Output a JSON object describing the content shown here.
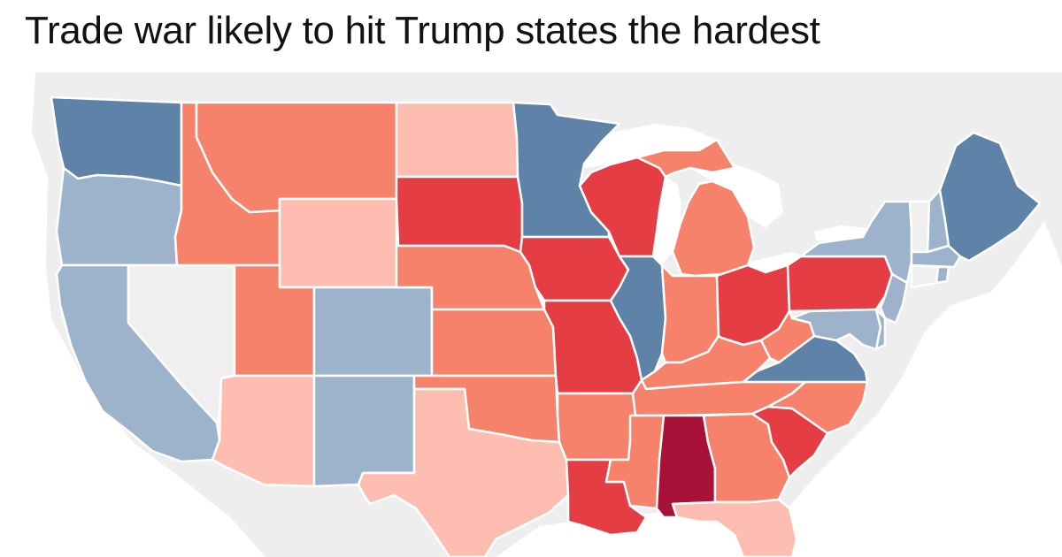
{
  "title": "Trade war likely to hit Trump states the hardest",
  "colors": {
    "background_land": "#eeeeee",
    "water": "#ffffff",
    "blue_dark": "#5e82a8",
    "blue_light": "#9cb3cb",
    "neutral": "#efefef",
    "red_light": "#fdbdb0",
    "red_medium": "#f6826b",
    "red_strong": "#e43e44",
    "red_darkest": "#a81238"
  },
  "states": [
    {
      "id": "WA",
      "name": "Washington",
      "category": "blue_dark"
    },
    {
      "id": "OR",
      "name": "Oregon",
      "category": "blue_light"
    },
    {
      "id": "CA",
      "name": "California",
      "category": "blue_light"
    },
    {
      "id": "NV",
      "name": "Nevada",
      "category": "neutral"
    },
    {
      "id": "ID",
      "name": "Idaho",
      "category": "red_medium"
    },
    {
      "id": "MT",
      "name": "Montana",
      "category": "red_medium"
    },
    {
      "id": "WY",
      "name": "Wyoming",
      "category": "red_light"
    },
    {
      "id": "UT",
      "name": "Utah",
      "category": "red_medium"
    },
    {
      "id": "CO",
      "name": "Colorado",
      "category": "blue_light"
    },
    {
      "id": "AZ",
      "name": "Arizona",
      "category": "red_light"
    },
    {
      "id": "NM",
      "name": "New Mexico",
      "category": "blue_light"
    },
    {
      "id": "ND",
      "name": "North Dakota",
      "category": "red_light"
    },
    {
      "id": "SD",
      "name": "South Dakota",
      "category": "red_strong"
    },
    {
      "id": "NE",
      "name": "Nebraska",
      "category": "red_medium"
    },
    {
      "id": "KS",
      "name": "Kansas",
      "category": "red_medium"
    },
    {
      "id": "OK",
      "name": "Oklahoma",
      "category": "red_medium"
    },
    {
      "id": "TX",
      "name": "Texas",
      "category": "red_light"
    },
    {
      "id": "MN",
      "name": "Minnesota",
      "category": "blue_dark"
    },
    {
      "id": "IA",
      "name": "Iowa",
      "category": "red_strong"
    },
    {
      "id": "MO",
      "name": "Missouri",
      "category": "red_strong"
    },
    {
      "id": "AR",
      "name": "Arkansas",
      "category": "red_medium"
    },
    {
      "id": "LA",
      "name": "Louisiana",
      "category": "red_strong"
    },
    {
      "id": "WI",
      "name": "Wisconsin",
      "category": "red_strong"
    },
    {
      "id": "IL",
      "name": "Illinois",
      "category": "blue_dark"
    },
    {
      "id": "MI",
      "name": "Michigan",
      "category": "red_medium"
    },
    {
      "id": "IN",
      "name": "Indiana",
      "category": "red_medium"
    },
    {
      "id": "OH",
      "name": "Ohio",
      "category": "red_strong"
    },
    {
      "id": "KY",
      "name": "Kentucky",
      "category": "red_medium"
    },
    {
      "id": "TN",
      "name": "Tennessee",
      "category": "red_medium"
    },
    {
      "id": "MS",
      "name": "Mississippi",
      "category": "red_medium"
    },
    {
      "id": "AL",
      "name": "Alabama",
      "category": "red_darkest"
    },
    {
      "id": "GA",
      "name": "Georgia",
      "category": "red_medium"
    },
    {
      "id": "FL",
      "name": "Florida",
      "category": "red_light"
    },
    {
      "id": "SC",
      "name": "South Carolina",
      "category": "red_strong"
    },
    {
      "id": "NC",
      "name": "North Carolina",
      "category": "red_medium"
    },
    {
      "id": "VA",
      "name": "Virginia",
      "category": "blue_dark"
    },
    {
      "id": "WV",
      "name": "West Virginia",
      "category": "red_medium"
    },
    {
      "id": "PA",
      "name": "Pennsylvania",
      "category": "red_strong"
    },
    {
      "id": "NY",
      "name": "New York",
      "category": "blue_light"
    },
    {
      "id": "NJ",
      "name": "New Jersey",
      "category": "blue_light"
    },
    {
      "id": "MD",
      "name": "Maryland",
      "category": "blue_light"
    },
    {
      "id": "DE",
      "name": "Delaware",
      "category": "blue_light"
    },
    {
      "id": "VT",
      "name": "Vermont",
      "category": "neutral"
    },
    {
      "id": "NH",
      "name": "New Hampshire",
      "category": "blue_light"
    },
    {
      "id": "MA",
      "name": "Massachusetts",
      "category": "blue_light"
    },
    {
      "id": "CT",
      "name": "Connecticut",
      "category": "neutral"
    },
    {
      "id": "RI",
      "name": "Rhode Island",
      "category": "blue_light"
    },
    {
      "id": "ME",
      "name": "Maine",
      "category": "blue_dark"
    }
  ]
}
